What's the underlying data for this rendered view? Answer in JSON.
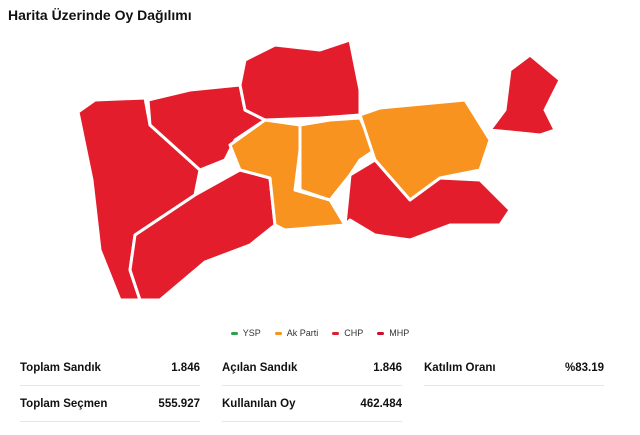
{
  "title": "Harita Üzerinde Oy Dağılımı",
  "legend": [
    {
      "label": "YSP",
      "color": "#2e9e4f"
    },
    {
      "label": "Ak Parti",
      "color": "#f7931e"
    },
    {
      "label": "CHP",
      "color": "#e31d2b"
    },
    {
      "label": "MHP",
      "color": "#c8102e"
    }
  ],
  "stats": [
    {
      "label": "Toplam Sandık",
      "value": "1.846"
    },
    {
      "label": "Açılan Sandık",
      "value": "1.846"
    },
    {
      "label": "Katılım Oranı",
      "value": "%83.19"
    },
    {
      "label": "Toplam Seçmen",
      "value": "555.927"
    },
    {
      "label": "Kullanılan Oy",
      "value": "462.484"
    }
  ]
}
